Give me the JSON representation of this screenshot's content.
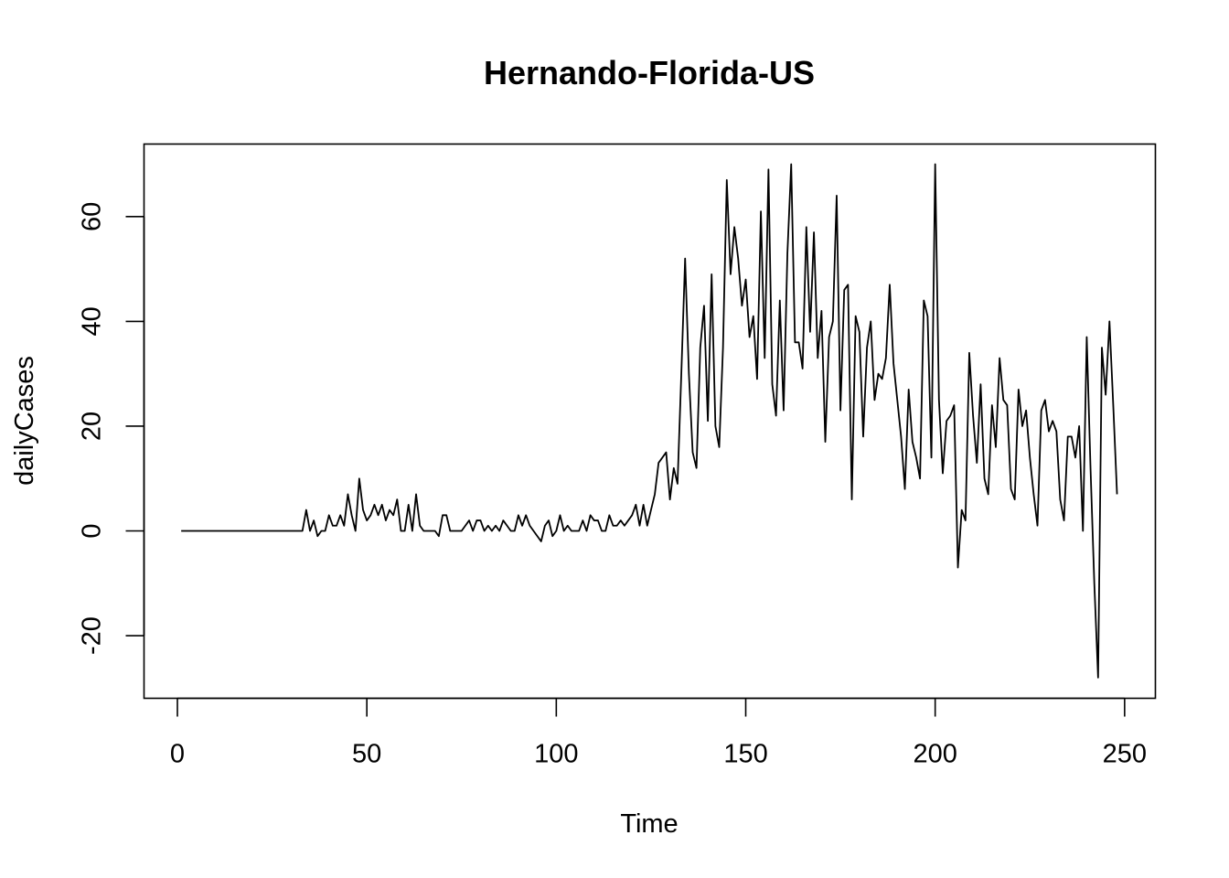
{
  "chart_data": {
    "type": "line",
    "title": "Hernando-Florida-US",
    "xlabel": "Time",
    "ylabel": "dailyCases",
    "xlim": [
      1,
      248
    ],
    "ylim": [
      -28,
      70
    ],
    "xticks": [
      0,
      50,
      100,
      150,
      200,
      250
    ],
    "yticks": [
      -20,
      0,
      20,
      40,
      60
    ],
    "grid": false,
    "series": [
      {
        "color": "#000000",
        "x": [
          1,
          2,
          3,
          4,
          5,
          6,
          7,
          8,
          9,
          10,
          11,
          12,
          13,
          14,
          15,
          16,
          17,
          18,
          19,
          20,
          21,
          22,
          23,
          24,
          25,
          26,
          27,
          28,
          29,
          30,
          31,
          32,
          33,
          34,
          35,
          36,
          37,
          38,
          39,
          40,
          41,
          42,
          43,
          44,
          45,
          46,
          47,
          48,
          49,
          50,
          51,
          52,
          53,
          54,
          55,
          56,
          57,
          58,
          59,
          60,
          61,
          62,
          63,
          64,
          65,
          66,
          67,
          68,
          69,
          70,
          71,
          72,
          73,
          74,
          75,
          76,
          77,
          78,
          79,
          80,
          81,
          82,
          83,
          84,
          85,
          86,
          87,
          88,
          89,
          90,
          91,
          92,
          93,
          94,
          95,
          96,
          97,
          98,
          99,
          100,
          101,
          102,
          103,
          104,
          105,
          106,
          107,
          108,
          109,
          110,
          111,
          112,
          113,
          114,
          115,
          116,
          117,
          118,
          119,
          120,
          121,
          122,
          123,
          124,
          125,
          126,
          127,
          128,
          129,
          130,
          131,
          132,
          133,
          134,
          135,
          136,
          137,
          138,
          139,
          140,
          141,
          142,
          143,
          144,
          145,
          146,
          147,
          148,
          149,
          150,
          151,
          152,
          153,
          154,
          155,
          156,
          157,
          158,
          159,
          160,
          161,
          162,
          163,
          164,
          165,
          166,
          167,
          168,
          169,
          170,
          171,
          172,
          173,
          174,
          175,
          176,
          177,
          178,
          179,
          180,
          181,
          182,
          183,
          184,
          185,
          186,
          187,
          188,
          189,
          190,
          191,
          192,
          193,
          194,
          195,
          196,
          197,
          198,
          199,
          200,
          201,
          202,
          203,
          204,
          205,
          206,
          207,
          208,
          209,
          210,
          211,
          212,
          213,
          214,
          215,
          216,
          217,
          218,
          219,
          220,
          221,
          222,
          223,
          224,
          225,
          226,
          227,
          228,
          229,
          230,
          231,
          232,
          233,
          234,
          235,
          236,
          237,
          238,
          239,
          240,
          241,
          242,
          243,
          244,
          245,
          246,
          247,
          248
        ],
        "y": [
          0,
          0,
          0,
          0,
          0,
          0,
          0,
          0,
          0,
          0,
          0,
          0,
          0,
          0,
          0,
          0,
          0,
          0,
          0,
          0,
          0,
          0,
          0,
          0,
          0,
          0,
          0,
          0,
          0,
          0,
          0,
          0,
          0,
          4,
          0,
          2,
          -1,
          0,
          0,
          3,
          1,
          1,
          3,
          1,
          7,
          3,
          0,
          10,
          4,
          2,
          3,
          5,
          3,
          5,
          2,
          4,
          3,
          6,
          0,
          0,
          5,
          0,
          7,
          1,
          0,
          0,
          0,
          0,
          -1,
          3,
          3,
          0,
          0,
          0,
          0,
          1,
          2,
          0,
          2,
          2,
          0,
          1,
          0,
          1,
          0,
          2,
          1,
          0,
          0,
          3,
          1,
          3,
          1,
          0,
          -1,
          -2,
          1,
          2,
          -1,
          0,
          3,
          0,
          1,
          0,
          0,
          0,
          2,
          0,
          3,
          2,
          2,
          0,
          0,
          3,
          1,
          1,
          2,
          1,
          2,
          3,
          5,
          1,
          5,
          1,
          4,
          7,
          13,
          14,
          15,
          6,
          12,
          9,
          30,
          52,
          30,
          15,
          12,
          35,
          43,
          21,
          49,
          20,
          16,
          35,
          67,
          49,
          58,
          52,
          43,
          48,
          37,
          41,
          29,
          61,
          33,
          69,
          28,
          22,
          44,
          23,
          53,
          70,
          36,
          36,
          31,
          58,
          38,
          57,
          33,
          42,
          17,
          37,
          40,
          64,
          23,
          46,
          47,
          6,
          41,
          38,
          18,
          35,
          40,
          25,
          30,
          29,
          33,
          47,
          32,
          25,
          18,
          8,
          27,
          17,
          14,
          10,
          44,
          41,
          14,
          70,
          25,
          11,
          21,
          22,
          24,
          -7,
          4,
          2,
          34,
          22,
          13,
          28,
          10,
          7,
          24,
          16,
          33,
          25,
          24,
          8,
          6,
          27,
          20,
          23,
          14,
          7,
          1,
          23,
          25,
          19,
          21,
          19,
          6,
          2,
          18,
          18,
          14,
          20,
          0,
          37,
          12,
          -10,
          -28,
          35,
          26,
          40,
          24,
          7
        ]
      }
    ]
  }
}
